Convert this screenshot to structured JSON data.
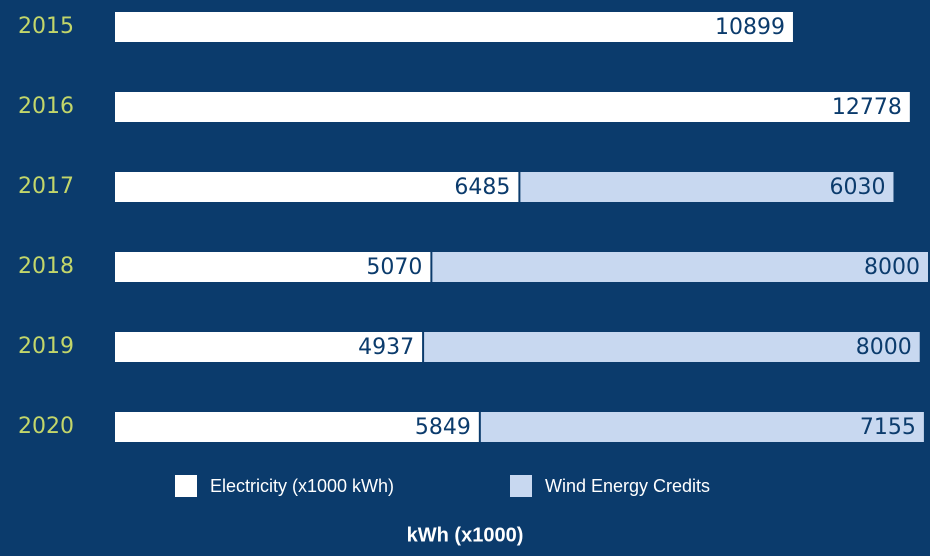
{
  "chart_data": {
    "type": "stacked_barh",
    "categories": [
      "2015",
      "2016",
      "2017",
      "2018",
      "2019",
      "2020"
    ],
    "series": [
      {
        "name": "Electricity (x1000 kWh)",
        "color": "#ffffff",
        "values": [
          10899,
          12778,
          6485,
          5070,
          4937,
          5849
        ]
      },
      {
        "name": "Wind Energy Credits",
        "color": "#c8d8f0",
        "values": [
          null,
          null,
          6030,
          8000,
          8000,
          7155
        ]
      }
    ],
    "x_label": "kWh (x1000)"
  }
}
